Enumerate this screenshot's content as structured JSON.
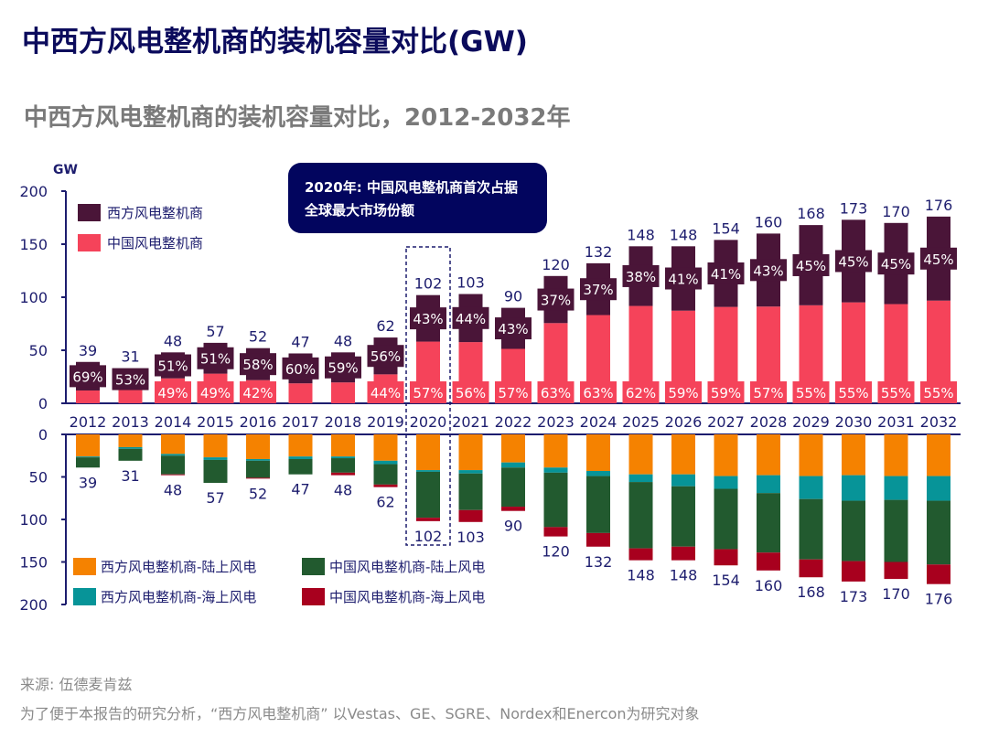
{
  "title": "中西方风电整机商的装机容量对比(GW)",
  "chart_data": [
    {
      "type": "bar",
      "stacked": true,
      "title": "中西方风电整机商的装机容量对比，2012-2032年",
      "ylabel": "GW",
      "ylim": [
        0,
        200
      ],
      "yticks": [
        0,
        50,
        100,
        150,
        200
      ],
      "categories": [
        "2012",
        "2013",
        "2014",
        "2015",
        "2016",
        "2017",
        "2018",
        "2019",
        "2020",
        "2021",
        "2022",
        "2023",
        "2024",
        "2025",
        "2026",
        "2027",
        "2028",
        "2029",
        "2030",
        "2031",
        "2032"
      ],
      "totals": [
        39,
        31,
        48,
        57,
        52,
        47,
        48,
        62,
        102,
        103,
        90,
        120,
        132,
        148,
        148,
        154,
        160,
        168,
        173,
        170,
        176
      ],
      "series": [
        {
          "name": "中国风电整机商",
          "color": "#f5435a",
          "share_pct": [
            31,
            47,
            49,
            49,
            42,
            40,
            41,
            44,
            57,
            56,
            57,
            63,
            63,
            62,
            59,
            59,
            57,
            55,
            55,
            55,
            55
          ],
          "labels": [
            null,
            null,
            "49%",
            "49%",
            "42%",
            null,
            null,
            "44%",
            "57%",
            "56%",
            "57%",
            "63%",
            "63%",
            "62%",
            "59%",
            "59%",
            "57%",
            "55%",
            "55%",
            "55%",
            "55%"
          ]
        },
        {
          "name": "西方风电整机商",
          "color": "#4a1538",
          "share_pct": [
            69,
            53,
            51,
            51,
            58,
            60,
            59,
            56,
            43,
            44,
            43,
            37,
            37,
            38,
            41,
            41,
            43,
            45,
            45,
            45,
            45
          ],
          "labels": [
            "69%",
            "53%",
            "51%",
            "51%",
            "58%",
            "60%",
            "59%",
            "56%",
            "43%",
            "44%",
            "43%",
            "37%",
            "37%",
            "38%",
            "41%",
            "41%",
            "43%",
            "45%",
            "45%",
            "45%",
            "45%"
          ]
        }
      ],
      "annotation": {
        "year": "2020",
        "text": [
          "2020年: 中国风电整机商首次占据",
          "全球最大市场份额"
        ]
      },
      "legend": "top-left"
    },
    {
      "type": "bar",
      "stacked": true,
      "inverted": true,
      "ylim": [
        0,
        200
      ],
      "yticks": [
        0,
        50,
        100,
        150,
        200
      ],
      "totals": [
        39,
        31,
        48,
        57,
        52,
        47,
        48,
        62,
        102,
        103,
        90,
        120,
        132,
        148,
        148,
        154,
        160,
        168,
        173,
        170,
        176
      ],
      "series": [
        {
          "name": "西方风电整机商-陆上风电",
          "color": "#f58200",
          "values": [
            26,
            15,
            23,
            27,
            29,
            26,
            26,
            31,
            42,
            42,
            33,
            39,
            43,
            47,
            47,
            49,
            48,
            49,
            48,
            49,
            49
          ]
        },
        {
          "name": "西方风电整机商-海上风电",
          "color": "#079498",
          "values": [
            1,
            2,
            2,
            3,
            2,
            3,
            2,
            4,
            2,
            4,
            6,
            6,
            6,
            9,
            14,
            15,
            21,
            27,
            30,
            28,
            29
          ]
        },
        {
          "name": "中国风电整机商-陆上风电",
          "color": "#225a2f",
          "values": [
            12,
            14,
            22,
            27,
            20,
            18,
            17,
            24,
            54,
            43,
            46,
            64,
            67,
            78,
            71,
            71,
            70,
            71,
            71,
            73,
            75
          ]
        },
        {
          "name": "中国风电整机商-海上风电",
          "color": "#a8001e",
          "values": [
            0,
            0,
            1,
            0,
            1,
            0,
            3,
            3,
            4,
            14,
            5,
            11,
            16,
            14,
            16,
            19,
            21,
            21,
            24,
            20,
            23
          ]
        }
      ],
      "legend": "bottom-left"
    }
  ],
  "footer": {
    "source": "来源: 伍德麦肯兹",
    "note": "为了便于本报告的研究分析，“西方风电整机商” 以Vestas、GE、SGRE、Nordex和Enercon为研究对象"
  }
}
